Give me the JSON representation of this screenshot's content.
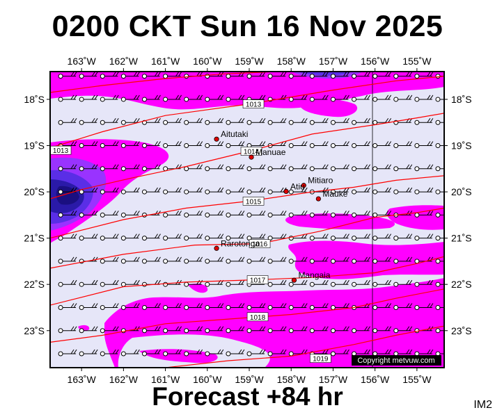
{
  "title": "0200 CKT Sun 16 Nov 2025",
  "footer": "Forecast +84 hr",
  "image_tag": "IM2",
  "copyright": "Copyright metvuw.com",
  "map": {
    "lon_range": [
      -163.75,
      -154.35
    ],
    "lat_range": [
      -17.4,
      -23.8
    ],
    "lon_ticks": [
      {
        "value": -163,
        "label": "163˚W"
      },
      {
        "value": -162,
        "label": "162˚W"
      },
      {
        "value": -161,
        "label": "161˚W"
      },
      {
        "value": -160,
        "label": "160˚W"
      },
      {
        "value": -159,
        "label": "159˚W"
      },
      {
        "value": -158,
        "label": "158˚W"
      },
      {
        "value": -157,
        "label": "157˚W"
      },
      {
        "value": -156,
        "label": "156˚W"
      },
      {
        "value": -155,
        "label": "155˚W"
      }
    ],
    "lat_ticks": [
      {
        "value": -18,
        "label": "18˚S"
      },
      {
        "value": -19,
        "label": "19˚S"
      },
      {
        "value": -20,
        "label": "20˚S"
      },
      {
        "value": -21,
        "label": "21˚S"
      },
      {
        "value": -22,
        "label": "22˚S"
      },
      {
        "value": -23,
        "label": "23˚S"
      }
    ],
    "places": [
      {
        "name": "Aitutaki",
        "lon": -159.78,
        "lat": -18.86
      },
      {
        "name": "Manuae",
        "lon": -158.95,
        "lat": -19.25
      },
      {
        "name": "Mitiaro",
        "lon": -157.7,
        "lat": -19.86
      },
      {
        "name": "Atiu",
        "lon": -158.12,
        "lat": -19.99
      },
      {
        "name": "Mauke",
        "lon": -157.35,
        "lat": -20.15
      },
      {
        "name": "Rarotonga",
        "lon": -159.78,
        "lat": -21.22
      },
      {
        "name": "Mangaia",
        "lon": -157.93,
        "lat": -21.91
      }
    ],
    "isobars": [
      {
        "label": "1013",
        "label_lon": -158.9,
        "label_lat": -18.1,
        "points": [
          [
            -163.75,
            -17.85
          ],
          [
            -162.5,
            -17.7
          ],
          [
            -161.0,
            -17.55
          ],
          [
            -159.6,
            -17.45
          ],
          [
            -158.3,
            -17.4
          ]
        ]
      },
      {
        "label": "1013",
        "label_lon": -163.5,
        "label_lat": -19.1,
        "points": [
          [
            -163.75,
            -19.05
          ],
          [
            -162.5,
            -18.7
          ],
          [
            -161.0,
            -18.35
          ],
          [
            -159.0,
            -18.1
          ],
          [
            -157.0,
            -17.8
          ],
          [
            -155.5,
            -17.6
          ],
          [
            -154.35,
            -17.5
          ]
        ]
      },
      {
        "label": "1014",
        "label_lon": -158.95,
        "label_lat": -19.12,
        "points": [
          [
            -163.75,
            -20.15
          ],
          [
            -163.0,
            -19.95
          ],
          [
            -161.8,
            -19.7
          ],
          [
            -160.5,
            -19.45
          ],
          [
            -159.0,
            -19.12
          ],
          [
            -157.5,
            -18.75
          ],
          [
            -156.0,
            -18.55
          ],
          [
            -155.0,
            -18.4
          ],
          [
            -154.35,
            -18.3
          ]
        ]
      },
      {
        "label": "1015",
        "label_lon": -158.9,
        "label_lat": -20.2,
        "points": [
          [
            -163.75,
            -21.0
          ],
          [
            -162.0,
            -20.6
          ],
          [
            -160.5,
            -20.35
          ],
          [
            -159.0,
            -20.2
          ],
          [
            -157.5,
            -20.0
          ],
          [
            -156.5,
            -19.9
          ],
          [
            -155.5,
            -19.75
          ],
          [
            -154.35,
            -19.65
          ]
        ]
      },
      {
        "label": "1016",
        "label_lon": -158.75,
        "label_lat": -21.12,
        "points": [
          [
            -163.75,
            -21.65
          ],
          [
            -162.0,
            -21.35
          ],
          [
            -160.3,
            -21.15
          ],
          [
            -158.75,
            -21.12
          ],
          [
            -157.3,
            -20.85
          ],
          [
            -156.0,
            -20.55
          ],
          [
            -155.0,
            -20.45
          ],
          [
            -154.35,
            -20.35
          ]
        ]
      },
      {
        "label": "1017",
        "label_lon": -158.8,
        "label_lat": -21.9,
        "points": [
          [
            -163.75,
            -22.45
          ],
          [
            -162.0,
            -22.05
          ],
          [
            -160.5,
            -21.95
          ],
          [
            -158.8,
            -21.9
          ],
          [
            -157.5,
            -21.85
          ],
          [
            -156.0,
            -21.75
          ],
          [
            -155.0,
            -21.55
          ],
          [
            -154.35,
            -21.4
          ]
        ]
      },
      {
        "label": "1018",
        "label_lon": -158.8,
        "label_lat": -22.7,
        "points": [
          [
            -163.75,
            -23.25
          ],
          [
            -162.5,
            -23.1
          ],
          [
            -161.0,
            -22.85
          ],
          [
            -159.5,
            -22.75
          ],
          [
            -158.0,
            -22.65
          ],
          [
            -156.5,
            -22.5
          ],
          [
            -155.5,
            -22.3
          ],
          [
            -154.35,
            -22.1
          ]
        ]
      },
      {
        "label": "1019",
        "label_lon": -157.3,
        "label_lat": -23.6,
        "points": [
          [
            -161.0,
            -23.8
          ],
          [
            -159.5,
            -23.65
          ],
          [
            -158.0,
            -23.55
          ],
          [
            -156.5,
            -23.3
          ],
          [
            -155.5,
            -23.1
          ],
          [
            -154.35,
            -22.9
          ]
        ]
      }
    ],
    "colors": {
      "background": "#e6e6f8",
      "magenta": "#ff00ff",
      "purple": "#9933ff",
      "blue": "#5a2ee6",
      "deep_blue": "#2a1aa8",
      "isobar": "#ff0000",
      "station": "#ffffff"
    }
  }
}
